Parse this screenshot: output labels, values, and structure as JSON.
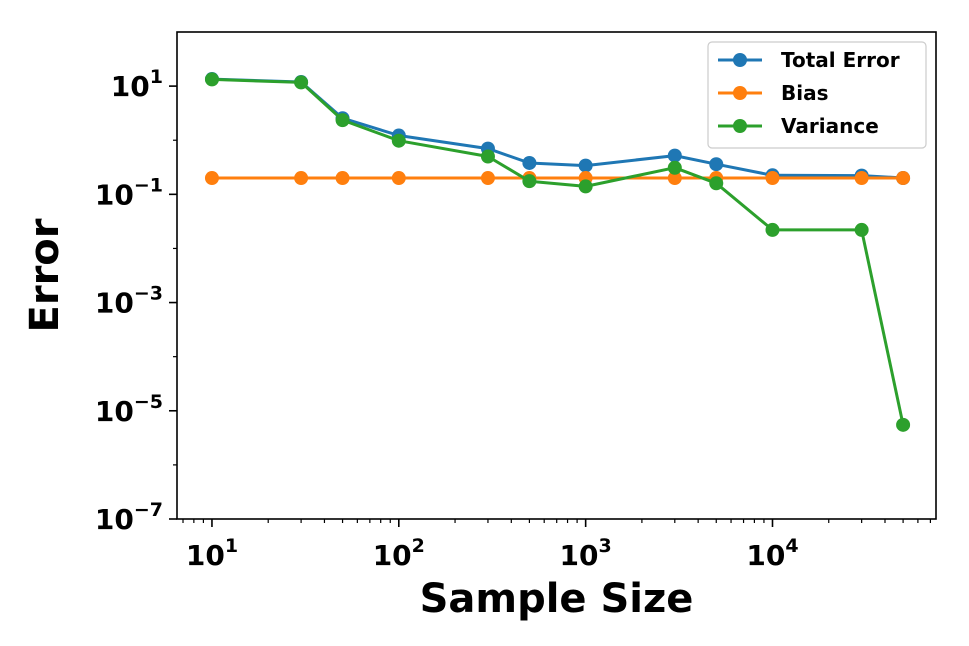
{
  "chart_data": {
    "type": "line",
    "title": "",
    "xlabel": "Sample Size",
    "ylabel": "Error",
    "xscale": "log",
    "yscale": "log",
    "xlim": [
      6.5,
      75000
    ],
    "ylim": [
      1e-07,
      100
    ],
    "xticks": [
      {
        "value": 10,
        "base": "10",
        "exp": "1"
      },
      {
        "value": 100,
        "base": "10",
        "exp": "2"
      },
      {
        "value": 1000,
        "base": "10",
        "exp": "3"
      },
      {
        "value": 10000,
        "base": "10",
        "exp": "4"
      }
    ],
    "yticks": [
      {
        "value": 10,
        "base": "10",
        "exp": "1"
      },
      {
        "value": 0.1,
        "base": "10",
        "exp": "−1"
      },
      {
        "value": 0.001,
        "base": "10",
        "exp": "−3"
      },
      {
        "value": 1e-05,
        "base": "10",
        "exp": "−5"
      },
      {
        "value": 1e-07,
        "base": "10",
        "exp": "−7"
      }
    ],
    "legend_position": "top-right",
    "grid": false,
    "x": [
      10,
      30,
      50,
      100,
      300,
      500,
      1000,
      3000,
      5000,
      10000,
      30000,
      50000
    ],
    "series": [
      {
        "name": "Total Error",
        "color": "#1f77b4",
        "values": [
          13.5,
          11.9,
          2.55,
          1.22,
          0.7,
          0.38,
          0.34,
          0.52,
          0.36,
          0.225,
          0.222,
          0.2
        ]
      },
      {
        "name": "Bias",
        "color": "#ff7f0e",
        "values": [
          0.2,
          0.2,
          0.2,
          0.2,
          0.2,
          0.2,
          0.2,
          0.2,
          0.2,
          0.2,
          0.2,
          0.2
        ]
      },
      {
        "name": "Variance",
        "color": "#2ca02c",
        "values": [
          13.3,
          11.7,
          2.35,
          0.98,
          0.5,
          0.175,
          0.14,
          0.31,
          0.16,
          0.022,
          0.022,
          5.5e-06
        ]
      }
    ]
  }
}
